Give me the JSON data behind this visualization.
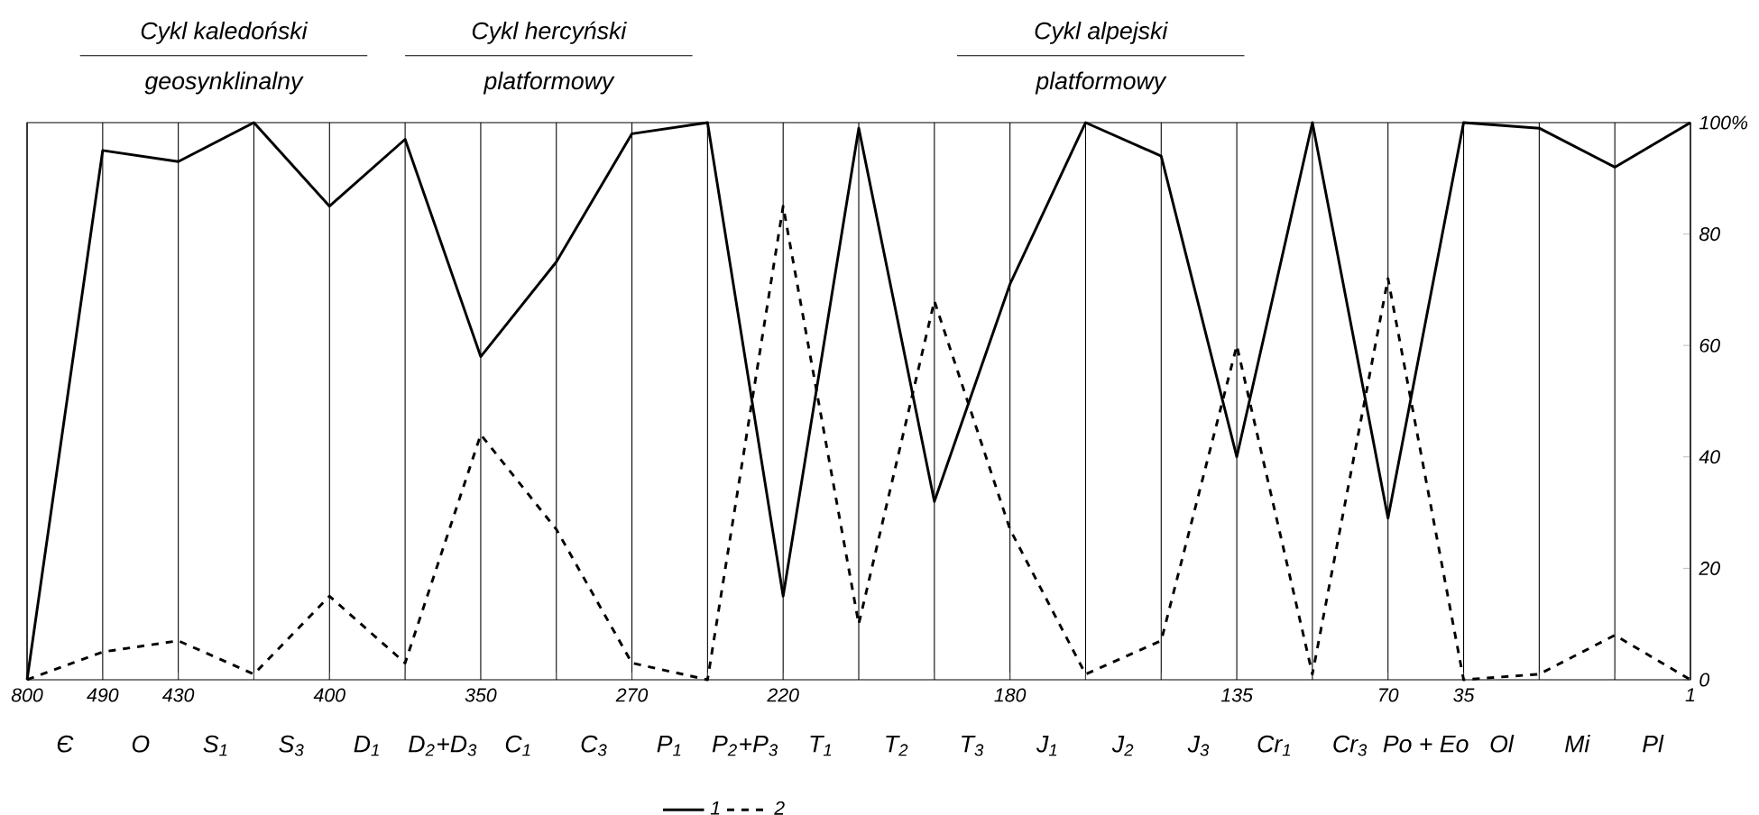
{
  "chart_data": {
    "type": "line",
    "categories": [
      "800",
      "490",
      "430",
      null,
      "400",
      null,
      "350",
      null,
      "270",
      null,
      "220",
      null,
      null,
      "180",
      null,
      null,
      "135",
      null,
      "70",
      "35",
      null,
      null,
      "1"
    ],
    "series": [
      {
        "name": "1",
        "color": "#000000",
        "line_style": "solid",
        "values": [
          0,
          95,
          93,
          100,
          85,
          97,
          58,
          75,
          98,
          100,
          15,
          99,
          32,
          71,
          100,
          94,
          40,
          100,
          29,
          100,
          99,
          92,
          100
        ]
      },
      {
        "name": "2",
        "color": "#000000",
        "line_style": "dashed",
        "values": [
          0,
          5,
          7,
          1,
          15,
          3,
          44,
          27,
          3,
          0,
          85,
          10,
          68,
          27,
          1,
          7,
          60,
          1,
          72,
          0,
          1,
          8,
          0
        ]
      }
    ],
    "ylim": [
      0,
      100
    ],
    "yticks": [
      0,
      20,
      40,
      60,
      80,
      {
        "value": 100,
        "label": "100%"
      }
    ],
    "grid": "x",
    "legend": "bottom",
    "marker": "none",
    "annotations": [
      "Cykl kaledoński",
      "geosynklinalny",
      "Cykl hercyński",
      "platformowy",
      "Cykl alpejski",
      "platformowy",
      "Є",
      "O",
      "S$_{1}$",
      "S$_{3}$",
      "D$_{1}$",
      "D$_{2}$+D$_{3}$",
      "C$_{1}$",
      "C$_{3}$",
      "P$_{1}$",
      "P$_{2}$+P$_{3}$",
      "T$_{1}$",
      "T$_{2}$",
      "T$_{3}$",
      "J$_{1}$",
      "J$_{2}$",
      "J$_{3}$",
      "Cr$_{1}$",
      "Cr$_{3}$",
      "Po + Eo",
      "Ol",
      "Mi",
      "Pl"
    ]
  }
}
